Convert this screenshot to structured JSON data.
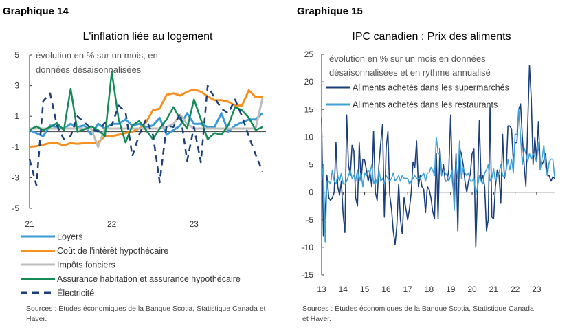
{
  "chart_data": [
    {
      "type": "line",
      "figure_label": "Graphique 14",
      "title": "L'inflation liée au logement",
      "subtitle": [
        "évolution en % sur un mois, en",
        "données désaisonnalisées"
      ],
      "ylim": [
        -5,
        5
      ],
      "y_ticks": [
        "5",
        "3",
        "1",
        "-1",
        "-3",
        "-5"
      ],
      "y_tick_values": [
        5,
        3,
        1,
        -1,
        -3,
        -5
      ],
      "x_ticks": [
        "21",
        "22",
        "23"
      ],
      "legend_placement": "bottom",
      "series": [
        {
          "name": "Loyers",
          "color": "#3b9ad6",
          "dashed": false,
          "values": [
            0.1,
            -0.1,
            -0.3,
            0.4,
            0.3,
            0.2,
            0.5,
            0.3,
            0.4,
            -0.2,
            0.5,
            0.2,
            0.5,
            0.5,
            0.8,
            0.4,
            0.5,
            0.3,
            0.4,
            0.9,
            -0.2,
            0.1,
            0.4,
            1.2,
            0.5,
            0.5,
            0.3,
            0.3,
            1.2,
            0,
            0.4,
            0.6,
            0.8,
            0.8,
            1.2
          ]
        },
        {
          "name": "Coût de l'intérêt hypothécaire",
          "color": "#f7901e",
          "dashed": false,
          "values": [
            -1,
            -0.95,
            -0.85,
            -0.75,
            -0.75,
            -0.9,
            -0.75,
            -0.8,
            -0.75,
            -0.75,
            -0.7,
            -0.3,
            -0.3,
            -0.2,
            -0.1,
            0,
            0.2,
            0.6,
            1.4,
            1.5,
            2.4,
            2.5,
            2.35,
            2.6,
            2.75,
            2.6,
            2.3,
            2.05,
            2.05,
            1.95,
            1.7,
            1.7,
            2.7,
            2.25,
            2.25
          ]
        },
        {
          "name": "Impôts fonciers",
          "color": "#bdbdbd",
          "dashed": false,
          "values": [
            0.2,
            0.2,
            0.2,
            0.2,
            0.2,
            0.2,
            0.2,
            0.2,
            0.2,
            0.2,
            -1,
            0.2,
            0.2,
            0.2,
            0.2,
            0.2,
            0.2,
            0.2,
            0.2,
            0.2,
            0.3,
            0.5,
            1.1,
            0.5,
            0.2,
            0.2,
            0.2,
            0.2,
            0.2,
            0.2,
            0.2,
            0.2,
            0.2,
            0.2,
            2.2
          ]
        },
        {
          "name": "Assurance habitation et assurance hypothécaire",
          "color": "#148a55",
          "dashed": false,
          "values": [
            0.1,
            0.35,
            0.1,
            0.3,
            0.55,
            0.1,
            2.8,
            0,
            0.15,
            0.35,
            0.1,
            -0.3,
            3.9,
            0.8,
            -0.7,
            0.4,
            0.7,
            0.1,
            -0.5,
            0.2,
            0.8,
            1.6,
            0.8,
            0.2,
            2.1,
            0.8,
            -0.5,
            -0.1,
            -0.2,
            0.4,
            1.6,
            1.4,
            0.9,
            0.1,
            0.3
          ]
        },
        {
          "name": "Électricité",
          "color": "#1c3f7a",
          "dashed": true,
          "values": [
            -1.8,
            -3.5,
            2,
            2.5,
            0.4,
            -0.5,
            -0.3,
            1,
            0.6,
            0.2,
            0,
            0.6,
            0.4,
            1.7,
            1.3,
            -1.6,
            -0.2,
            0.8,
            -0.2,
            -3.3,
            0.4,
            0.3,
            1.2,
            -1.9,
            0.3,
            -2,
            3,
            2.2,
            1.5,
            1.2,
            2.1,
            1,
            -0.3,
            -1.5,
            -2.6
          ]
        }
      ],
      "source": [
        "Sources : Études économiques de la Banque Scotia, Statistique Canada et",
        "Haver."
      ]
    },
    {
      "type": "line",
      "figure_label": "Graphique 15",
      "title": "IPC canadien : Prix des aliments",
      "subtitle": [
        "évolution en % sur un mois en données",
        "désaisonnalisées et en rythme annualisé"
      ],
      "ylim": [
        -15,
        25
      ],
      "y_ticks": [
        "25",
        "20",
        "15",
        "10",
        "5",
        "0",
        "-5",
        "-10",
        "-15"
      ],
      "y_tick_values": [
        25,
        20,
        15,
        10,
        5,
        0,
        -5,
        -10,
        -15
      ],
      "x_ticks": [
        "13",
        "14",
        "15",
        "16",
        "17",
        "18",
        "19",
        "20",
        "21",
        "22",
        "23"
      ],
      "legend_placement": "top-left",
      "series": [
        {
          "name": "Aliments achetés dans les supermarchés",
          "color": "#1c3f7a",
          "dashed": false,
          "values": [
            13.5,
            -8,
            -4,
            3,
            -1,
            -1.5,
            -1,
            0,
            9,
            1,
            -0.5,
            2,
            -4,
            -7.3,
            14,
            5,
            3,
            8.5,
            7.5,
            -1,
            -2.5,
            9,
            2,
            6,
            5.8,
            4,
            2,
            3.5,
            1,
            11,
            0,
            -1.5,
            5,
            9,
            12.3,
            -4.5,
            8,
            11,
            -0.5,
            -3,
            -7,
            -9.5,
            -6,
            1.5,
            -5,
            -7.5,
            -1,
            -3,
            -5,
            -3,
            0,
            5.5,
            4.5,
            9.3,
            1,
            3,
            1,
            0.5,
            -3.7,
            1,
            0.5,
            -1,
            -3.5,
            -4.8,
            7,
            -4.8,
            8,
            3,
            5,
            2,
            2,
            4,
            14,
            2,
            -1,
            7,
            -7,
            8,
            7,
            5,
            2,
            0,
            2,
            3.3,
            7,
            7.8,
            -10,
            0.5,
            13,
            2,
            3,
            1,
            -7,
            -5,
            15.5,
            -4.5,
            -4.8,
            1,
            4,
            3,
            -2,
            10.5,
            2.5,
            4,
            12,
            12,
            11.5,
            5.5,
            9,
            9,
            15,
            16,
            10,
            5,
            1,
            12,
            23,
            17,
            5,
            10,
            6,
            12.8,
            5,
            5,
            5.8,
            7,
            3,
            3,
            2,
            2.8,
            2.5
          ]
        },
        {
          "name": "Aliments achetés dans les restaurants",
          "color": "#3ea0d8",
          "dashed": false,
          "values": [
            2,
            5,
            -9,
            2,
            2,
            1.5,
            4,
            2,
            1.5,
            3,
            2,
            3.5,
            1.5,
            1.5,
            2,
            3,
            4,
            2.5,
            3,
            2,
            4,
            2,
            3.5,
            1,
            3.5,
            3,
            4,
            3.5,
            5,
            1.5,
            2.5,
            1.5,
            4,
            2,
            2.5,
            1.5,
            3,
            2.5,
            2,
            2.5,
            3.5,
            2,
            2.5,
            3,
            2,
            3,
            2.5,
            2.5,
            2.5,
            1.5,
            2,
            2.5,
            3,
            2.5,
            2.5,
            2.5,
            3,
            3.5,
            2,
            3.5,
            3.5,
            4.5,
            4,
            3,
            10,
            7,
            7,
            3,
            4,
            3.5,
            3,
            2,
            3,
            4,
            -3.3,
            5,
            2.5,
            9.3,
            2.5,
            4.5,
            3.5,
            3,
            3.5,
            2,
            2,
            2.5,
            -0.5,
            1,
            3,
            2,
            1.5,
            3.5,
            4,
            5,
            2,
            2.5,
            4.2,
            2,
            3,
            3.5,
            5,
            3,
            2.8,
            4,
            6,
            4,
            6,
            3.5,
            10.5,
            10.5,
            15,
            10,
            5,
            8,
            7,
            5.5,
            7,
            6,
            7,
            6.5,
            5.5,
            9,
            4,
            6,
            8.5,
            4.5,
            3,
            5.5,
            6,
            6,
            2.8
          ]
        }
      ],
      "source": [
        "Sources : Études économiques de la Banque Scotia, Statistique Canada",
        "et Haver."
      ]
    }
  ]
}
